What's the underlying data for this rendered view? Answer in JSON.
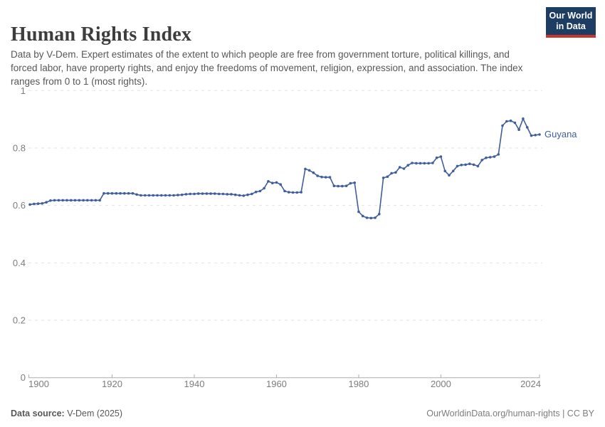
{
  "header": {
    "title": "Human Rights Index",
    "logo": {
      "line1": "Our World",
      "line2": "in Data"
    }
  },
  "subtitle": "Data by V-Dem. Expert estimates of the extent to which people are free from government torture, political killings, and forced labor, have property rights, and enjoy the freedoms of movement, religion, expression, and association. The index ranges from 0 to 1 (most rights).",
  "footer": {
    "source_label": "Data source:",
    "source_value": "V-Dem (2025)",
    "right_text": "OurWorldinData.org/human-rights | CC BY"
  },
  "colors": {
    "line": "#3e5e9e",
    "grid": "#e2e2e2",
    "axis": "#adadad",
    "tick_label": "#7d7d7d",
    "logo_navy": "#1d3d63",
    "logo_red": "#c9362c"
  },
  "chart_data": {
    "type": "line",
    "title": "Human Rights Index",
    "xlabel": "",
    "ylabel": "",
    "xlim": [
      1900,
      2024
    ],
    "ylim": [
      0,
      1
    ],
    "xticks": [
      1900,
      1920,
      1940,
      1960,
      1980,
      2000,
      2024
    ],
    "yticks": [
      0,
      0.2,
      0.4,
      0.6,
      0.8,
      1
    ],
    "grid": "horizontal-dashed",
    "legend_position": "end-of-line-label",
    "series": [
      {
        "name": "Guyana",
        "color": "#3e5e9e",
        "points": [
          [
            1900,
            0.603
          ],
          [
            1901,
            0.605
          ],
          [
            1902,
            0.606
          ],
          [
            1903,
            0.607
          ],
          [
            1904,
            0.611
          ],
          [
            1905,
            0.617
          ],
          [
            1906,
            0.618
          ],
          [
            1907,
            0.618
          ],
          [
            1908,
            0.618
          ],
          [
            1909,
            0.618
          ],
          [
            1910,
            0.618
          ],
          [
            1911,
            0.618
          ],
          [
            1912,
            0.618
          ],
          [
            1913,
            0.618
          ],
          [
            1914,
            0.618
          ],
          [
            1915,
            0.618
          ],
          [
            1916,
            0.618
          ],
          [
            1917,
            0.618
          ],
          [
            1918,
            0.642
          ],
          [
            1919,
            0.642
          ],
          [
            1920,
            0.642
          ],
          [
            1921,
            0.642
          ],
          [
            1922,
            0.642
          ],
          [
            1923,
            0.642
          ],
          [
            1924,
            0.642
          ],
          [
            1925,
            0.642
          ],
          [
            1926,
            0.638
          ],
          [
            1927,
            0.635
          ],
          [
            1928,
            0.635
          ],
          [
            1929,
            0.635
          ],
          [
            1930,
            0.635
          ],
          [
            1931,
            0.635
          ],
          [
            1932,
            0.635
          ],
          [
            1933,
            0.635
          ],
          [
            1934,
            0.635
          ],
          [
            1935,
            0.635
          ],
          [
            1936,
            0.636
          ],
          [
            1937,
            0.637
          ],
          [
            1938,
            0.639
          ],
          [
            1939,
            0.64
          ],
          [
            1940,
            0.64
          ],
          [
            1941,
            0.641
          ],
          [
            1942,
            0.641
          ],
          [
            1943,
            0.641
          ],
          [
            1944,
            0.641
          ],
          [
            1945,
            0.641
          ],
          [
            1946,
            0.64
          ],
          [
            1947,
            0.64
          ],
          [
            1948,
            0.639
          ],
          [
            1949,
            0.639
          ],
          [
            1950,
            0.637
          ],
          [
            1951,
            0.635
          ],
          [
            1952,
            0.634
          ],
          [
            1953,
            0.637
          ],
          [
            1954,
            0.64
          ],
          [
            1955,
            0.647
          ],
          [
            1956,
            0.65
          ],
          [
            1957,
            0.66
          ],
          [
            1958,
            0.684
          ],
          [
            1959,
            0.678
          ],
          [
            1960,
            0.68
          ],
          [
            1961,
            0.673
          ],
          [
            1962,
            0.65
          ],
          [
            1963,
            0.646
          ],
          [
            1964,
            0.645
          ],
          [
            1965,
            0.645
          ],
          [
            1966,
            0.646
          ],
          [
            1967,
            0.727
          ],
          [
            1968,
            0.722
          ],
          [
            1969,
            0.714
          ],
          [
            1970,
            0.703
          ],
          [
            1971,
            0.699
          ],
          [
            1972,
            0.698
          ],
          [
            1973,
            0.698
          ],
          [
            1974,
            0.668
          ],
          [
            1975,
            0.667
          ],
          [
            1976,
            0.667
          ],
          [
            1977,
            0.668
          ],
          [
            1978,
            0.677
          ],
          [
            1979,
            0.679
          ],
          [
            1980,
            0.578
          ],
          [
            1981,
            0.563
          ],
          [
            1982,
            0.557
          ],
          [
            1983,
            0.556
          ],
          [
            1984,
            0.557
          ],
          [
            1985,
            0.57
          ],
          [
            1986,
            0.696
          ],
          [
            1987,
            0.7
          ],
          [
            1988,
            0.712
          ],
          [
            1989,
            0.715
          ],
          [
            1990,
            0.733
          ],
          [
            1991,
            0.728
          ],
          [
            1992,
            0.74
          ],
          [
            1993,
            0.748
          ],
          [
            1994,
            0.747
          ],
          [
            1995,
            0.747
          ],
          [
            1996,
            0.747
          ],
          [
            1997,
            0.747
          ],
          [
            1998,
            0.748
          ],
          [
            1999,
            0.766
          ],
          [
            2000,
            0.77
          ],
          [
            2001,
            0.72
          ],
          [
            2002,
            0.705
          ],
          [
            2003,
            0.72
          ],
          [
            2004,
            0.737
          ],
          [
            2005,
            0.741
          ],
          [
            2006,
            0.742
          ],
          [
            2007,
            0.745
          ],
          [
            2008,
            0.742
          ],
          [
            2009,
            0.737
          ],
          [
            2010,
            0.758
          ],
          [
            2011,
            0.766
          ],
          [
            2012,
            0.768
          ],
          [
            2013,
            0.77
          ],
          [
            2014,
            0.778
          ],
          [
            2015,
            0.878
          ],
          [
            2016,
            0.893
          ],
          [
            2017,
            0.895
          ],
          [
            2018,
            0.888
          ],
          [
            2019,
            0.864
          ],
          [
            2020,
            0.902
          ],
          [
            2021,
            0.872
          ],
          [
            2022,
            0.843
          ],
          [
            2023,
            0.845
          ],
          [
            2024,
            0.847
          ]
        ]
      }
    ]
  }
}
